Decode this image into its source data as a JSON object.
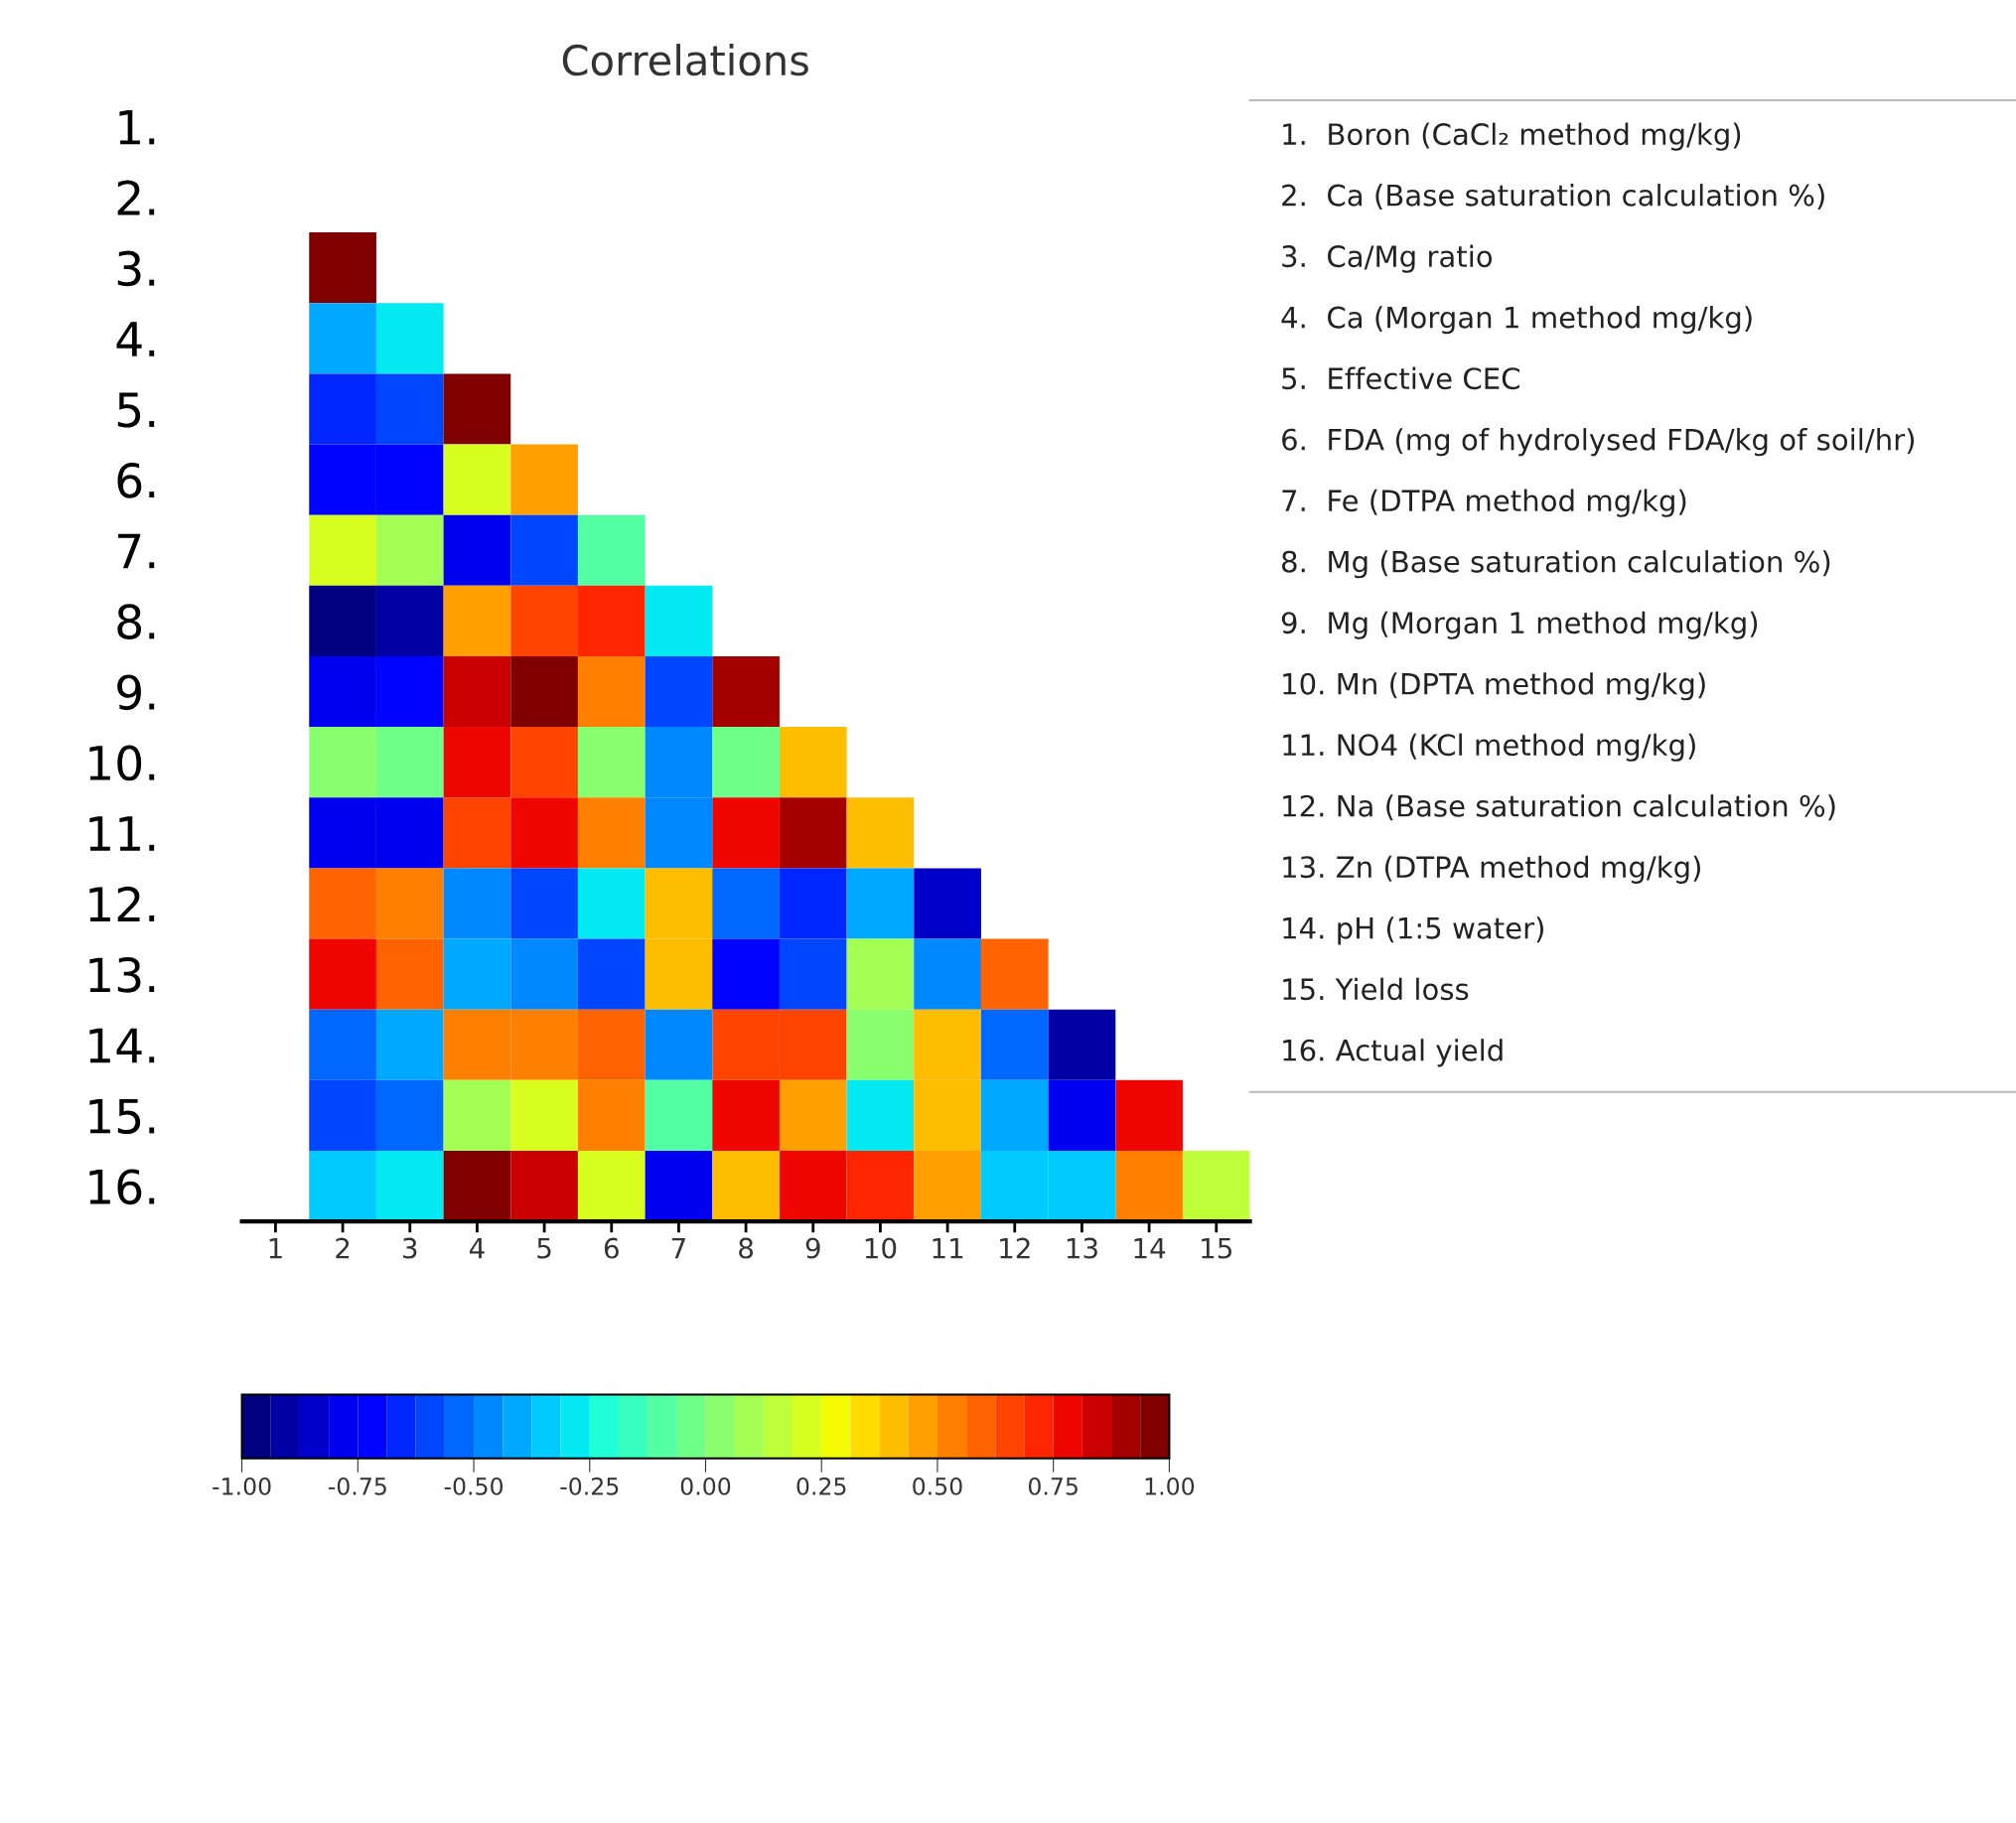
{
  "chart_data": {
    "type": "heatmap",
    "title": "Correlations",
    "categories": [
      "1",
      "2",
      "3",
      "4",
      "5",
      "6",
      "7",
      "8",
      "9",
      "10",
      "11",
      "12",
      "13",
      "14",
      "15"
    ],
    "y_categories": [
      "1.",
      "2.",
      "3.",
      "4.",
      "5.",
      "6.",
      "7.",
      "8.",
      "9.",
      "10.",
      "11.",
      "12.",
      "13.",
      "14.",
      "15.",
      "16."
    ],
    "cells": [
      [
        null,
        null,
        null,
        null,
        null,
        null,
        null,
        null,
        null,
        null,
        null,
        null,
        null,
        null,
        null
      ],
      [
        null,
        null,
        null,
        null,
        null,
        null,
        null,
        null,
        null,
        null,
        null,
        null,
        null,
        null,
        null
      ],
      [
        null,
        0.95,
        null,
        null,
        null,
        null,
        null,
        null,
        null,
        null,
        null,
        null,
        null,
        null,
        null
      ],
      [
        null,
        -0.4,
        -0.3,
        null,
        null,
        null,
        null,
        null,
        null,
        null,
        null,
        null,
        null,
        null,
        null
      ],
      [
        null,
        -0.65,
        -0.6,
        0.95,
        null,
        null,
        null,
        null,
        null,
        null,
        null,
        null,
        null,
        null,
        null
      ],
      [
        null,
        -0.72,
        -0.72,
        0.2,
        0.45,
        null,
        null,
        null,
        null,
        null,
        null,
        null,
        null,
        null,
        null
      ],
      [
        null,
        0.2,
        0.1,
        -0.78,
        -0.62,
        -0.1,
        null,
        null,
        null,
        null,
        null,
        null,
        null,
        null,
        null
      ],
      [
        null,
        -0.95,
        -0.9,
        0.45,
        0.65,
        0.7,
        -0.3,
        null,
        null,
        null,
        null,
        null,
        null,
        null,
        null
      ],
      [
        null,
        -0.8,
        -0.75,
        0.85,
        0.95,
        0.55,
        -0.62,
        0.88,
        null,
        null,
        null,
        null,
        null,
        null,
        null
      ],
      [
        null,
        0.0,
        -0.05,
        0.8,
        0.68,
        0.0,
        -0.45,
        -0.02,
        0.42,
        null,
        null,
        null,
        null,
        null,
        null
      ],
      [
        null,
        -0.78,
        -0.78,
        0.65,
        0.78,
        0.5,
        -0.5,
        0.8,
        0.9,
        0.38,
        null,
        null,
        null,
        null,
        null
      ],
      [
        null,
        0.6,
        0.55,
        -0.5,
        -0.6,
        -0.3,
        0.38,
        -0.55,
        -0.65,
        -0.4,
        -0.85,
        null,
        null,
        null,
        null
      ],
      [
        null,
        0.75,
        0.62,
        -0.4,
        -0.45,
        -0.62,
        0.42,
        -0.72,
        -0.62,
        0.1,
        -0.5,
        0.62,
        null,
        null,
        null
      ],
      [
        null,
        -0.55,
        -0.38,
        0.52,
        0.52,
        0.58,
        -0.5,
        0.65,
        0.65,
        0.05,
        0.38,
        -0.52,
        -0.92,
        null,
        null
      ],
      [
        null,
        -0.62,
        -0.55,
        0.12,
        0.22,
        0.55,
        -0.12,
        0.75,
        0.48,
        -0.3,
        0.38,
        -0.42,
        -0.8,
        0.75,
        null
      ],
      [
        null,
        -0.35,
        -0.3,
        0.95,
        0.85,
        0.22,
        -0.78,
        0.38,
        0.78,
        0.72,
        0.48,
        -0.32,
        -0.32,
        0.5,
        0.15
      ]
    ],
    "clim": [
      -1,
      1
    ],
    "cticks": [
      {
        "value": -1,
        "label": "-1.00"
      },
      {
        "value": -0.75,
        "label": "-0.75"
      },
      {
        "value": -0.5,
        "label": "-0.50"
      },
      {
        "value": -0.25,
        "label": "-0.25"
      },
      {
        "value": 0,
        "label": "0.00"
      },
      {
        "value": 0.25,
        "label": "0.25"
      },
      {
        "value": 0.5,
        "label": "0.50"
      },
      {
        "value": 0.75,
        "label": "0.75"
      },
      {
        "value": 1,
        "label": "1.00"
      }
    ],
    "annotations": [
      "1.  Boron (CaCl₂ method mg/kg)",
      "2.  Ca (Base saturation calculation %)",
      "3.  Ca/Mg ratio",
      "4.  Ca (Morgan 1 method mg/kg)",
      "5.  Effective CEC",
      "6.  FDA (mg of hydrolysed FDA/kg of soil/hr)",
      "7.  Fe (DTPA method mg/kg)",
      "8.  Mg (Base saturation calculation %)",
      "9.  Mg (Morgan 1 method mg/kg)",
      "10. Mn (DPTA method mg/kg)",
      "11. NO4 (KCl method mg/kg)",
      "12. Na (Base saturation calculation %)",
      "13. Zn (DTPA method mg/kg)",
      "14. pH (1:5 water)",
      "15. Yield loss",
      "16. Actual yield"
    ]
  }
}
